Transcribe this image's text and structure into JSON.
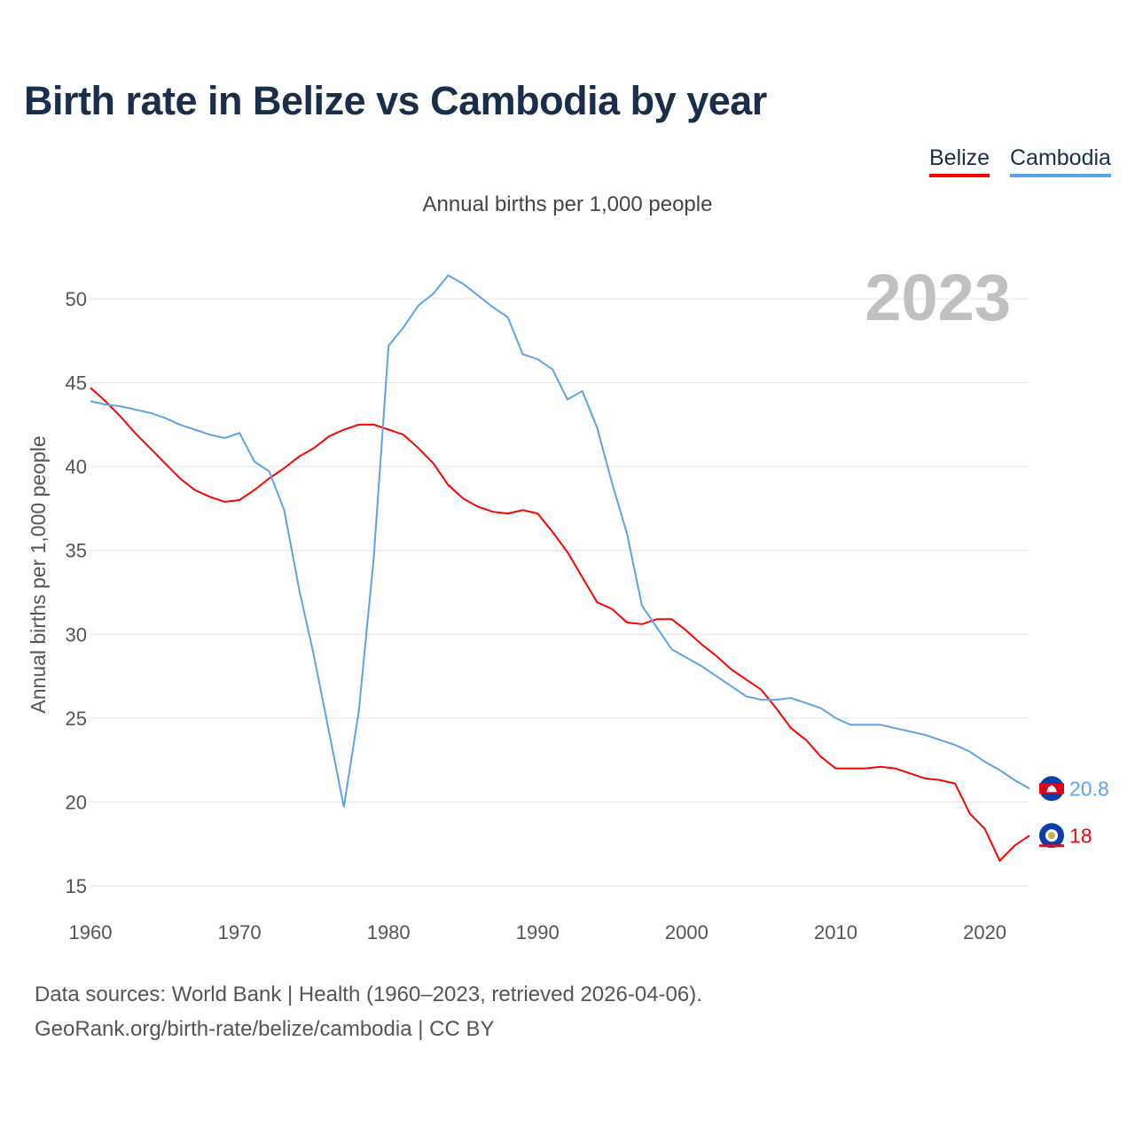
{
  "title": "Birth rate in Belize vs Cambodia by year",
  "footer": {
    "source": "Data sources: World Bank | Health (1960–2023, retrieved 2026-04-06).",
    "link": "GeoRank.org/birth-rate/belize/cambodia | CC BY"
  },
  "chart_data": {
    "type": "line",
    "title": "Birth rate in Belize vs Cambodia by year",
    "subtitle": "Annual births per 1,000 people",
    "ylabel": "Annual births per 1,000 people",
    "xlabel": "",
    "year_label": "2023",
    "xlim": [
      1960,
      2023
    ],
    "ylim": [
      15,
      52.5
    ],
    "xticks": [
      "1960",
      "1970",
      "1980",
      "1990",
      "2000",
      "2010",
      "2020"
    ],
    "yticks": [
      "15",
      "20",
      "25",
      "30",
      "35",
      "40",
      "45",
      "50"
    ],
    "grid": true,
    "legend_position": "top-right",
    "x_start": 1960,
    "series": [
      {
        "name": "Belize",
        "color": "#ff0000",
        "end_label": "18",
        "values": [
          44.7,
          43.9,
          43.0,
          42.0,
          41.1,
          40.2,
          39.3,
          38.6,
          38.2,
          37.9,
          38.0,
          38.6,
          39.3,
          39.9,
          40.6,
          41.1,
          41.8,
          42.2,
          42.5,
          42.5,
          42.2,
          41.9,
          41.1,
          40.2,
          38.9,
          38.1,
          37.6,
          37.3,
          37.2,
          37.4,
          37.2,
          36.1,
          34.9,
          33.4,
          31.9,
          31.5,
          30.7,
          30.6,
          30.9,
          30.9,
          30.2,
          29.4,
          28.7,
          27.9,
          27.3,
          26.7,
          25.6,
          24.4,
          23.7,
          22.7,
          22.0,
          22.0,
          22.0,
          22.1,
          22.0,
          21.7,
          21.4,
          21.3,
          21.1,
          19.3,
          18.4,
          16.5,
          17.4,
          18.0
        ]
      },
      {
        "name": "Cambodia",
        "color": "#5ba4e9",
        "end_label": "20.8",
        "values": [
          43.9,
          43.7,
          43.6,
          43.4,
          43.2,
          42.9,
          42.5,
          42.2,
          41.9,
          41.7,
          42.0,
          40.3,
          39.7,
          37.4,
          32.7,
          28.7,
          24.2,
          19.7,
          25.4,
          34.5,
          47.2,
          48.3,
          49.6,
          50.3,
          51.4,
          50.9,
          50.2,
          49.5,
          48.9,
          46.7,
          46.4,
          45.8,
          44.0,
          44.5,
          42.3,
          39.0,
          36.0,
          31.7,
          30.4,
          29.1,
          28.6,
          28.1,
          27.5,
          26.9,
          26.3,
          26.1,
          26.1,
          26.2,
          25.9,
          25.6,
          25.0,
          24.6,
          24.6,
          24.6,
          24.4,
          24.2,
          24.0,
          23.7,
          23.4,
          23.0,
          22.4,
          21.9,
          21.3,
          20.8
        ]
      }
    ]
  }
}
